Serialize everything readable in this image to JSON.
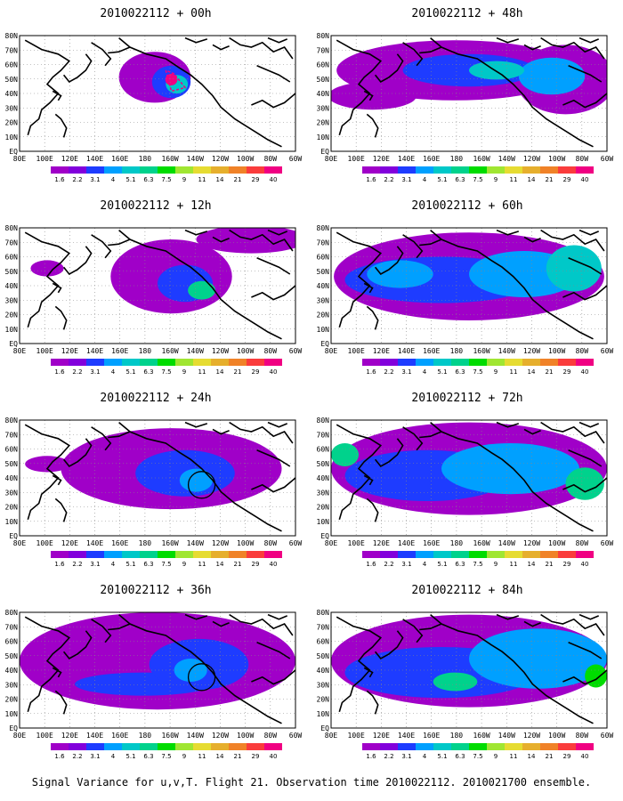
{
  "figure": {
    "caption": "Signal Variance for u,v,T. Flight 21. Observation time 2010022112. 2010021700 ensemble.",
    "lon_labels": [
      "80E",
      "100E",
      "120E",
      "140E",
      "160E",
      "180",
      "160W",
      "140W",
      "120W",
      "100W",
      "80W",
      "60W"
    ],
    "lat_labels": [
      "80N",
      "70N",
      "60N",
      "50N",
      "40N",
      "30N",
      "20N",
      "10N",
      "EQ"
    ],
    "colorbar": {
      "levels": [
        "1.6",
        "2.2",
        "3.1",
        "4",
        "5.1",
        "6.3",
        "7.5",
        "9",
        "11",
        "14",
        "21",
        "29",
        "40"
      ],
      "colors": [
        "#a000c8",
        "#8200dc",
        "#1e3cff",
        "#00a0ff",
        "#00c8c8",
        "#00d28c",
        "#00dc00",
        "#a0e632",
        "#e6dc32",
        "#e6af2d",
        "#f08228",
        "#fa3c3c",
        "#f00082"
      ]
    },
    "panels": [
      {
        "title": "2010022112 + 00h",
        "lead_hours": 0,
        "circle": false
      },
      {
        "title": "2010022112 + 48h",
        "lead_hours": 48,
        "circle": false
      },
      {
        "title": "2010022112 + 12h",
        "lead_hours": 12,
        "circle": false
      },
      {
        "title": "2010022112 + 60h",
        "lead_hours": 60,
        "circle": false
      },
      {
        "title": "2010022112 + 24h",
        "lead_hours": 24,
        "circle": true
      },
      {
        "title": "2010022112 + 72h",
        "lead_hours": 72,
        "circle": false
      },
      {
        "title": "2010022112 + 36h",
        "lead_hours": 36,
        "circle": true
      },
      {
        "title": "2010022112 + 84h",
        "lead_hours": 84,
        "circle": false
      }
    ]
  }
}
